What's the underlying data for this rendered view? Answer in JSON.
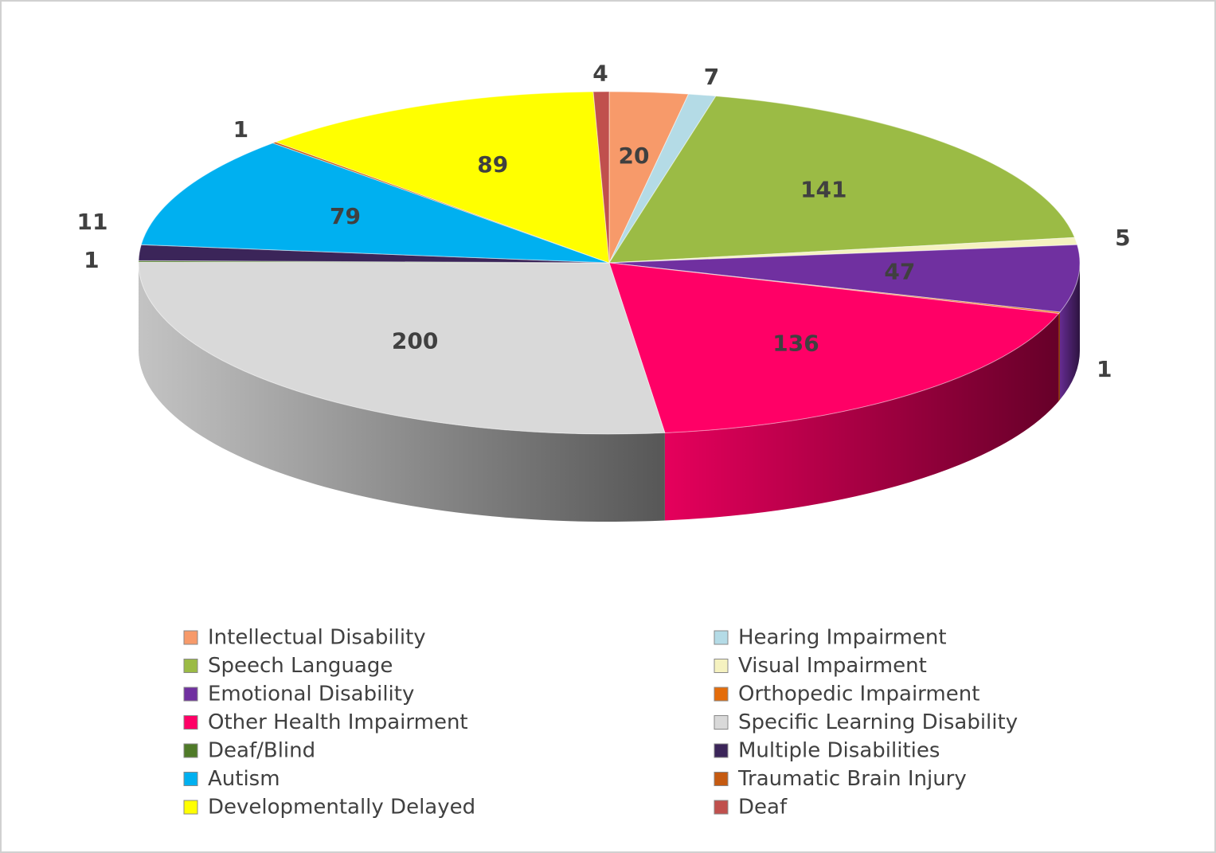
{
  "chart_data": {
    "type": "pie",
    "categories": [
      "Intellectual Disability",
      "Hearing Impairment",
      "Speech Language",
      "Visual Impairment",
      "Emotional Disability",
      "Orthopedic Impairment",
      "Other Health Impairment",
      "Specific Learning Disability",
      "Deaf/Blind",
      "Multiple Disabilities",
      "Autism",
      "Traumatic Brain Injury",
      "Developmentally Delayed",
      "Deaf"
    ],
    "values": [
      20,
      7,
      141,
      5,
      47,
      1,
      136,
      200,
      1,
      11,
      79,
      1,
      89,
      4
    ],
    "colors": [
      "#f79a6a",
      "#b4dbe6",
      "#9bbb45",
      "#f5f2c0",
      "#7030a0",
      "#e46c0a",
      "#ff0066",
      "#d9d9d9",
      "#4f7a28",
      "#3b2559",
      "#00b0f0",
      "#c55a11",
      "#ffff00",
      "#c0504d"
    ],
    "legend": "bottom"
  }
}
